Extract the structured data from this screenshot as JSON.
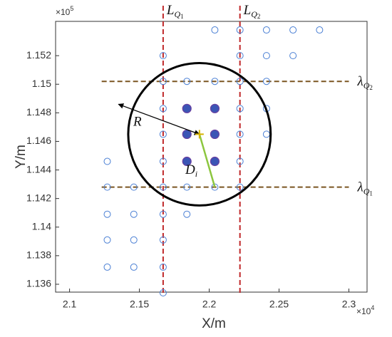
{
  "chart_data": {
    "type": "scatter",
    "xlabel": "X/m",
    "ylabel": "Y/m",
    "x_exponent": {
      "base": "×10",
      "power": "4"
    },
    "y_exponent": {
      "base": "×10",
      "power": "5"
    },
    "xlim": [
      2.09,
      2.313
    ],
    "ylim": [
      1.13545,
      1.1544
    ],
    "xticks": [
      2.1,
      2.15,
      2.2,
      2.25,
      2.3
    ],
    "yticks": [
      1.136,
      1.138,
      1.14,
      1.142,
      1.144,
      1.146,
      1.148,
      1.15,
      1.152
    ],
    "series": [
      {
        "marker": "open",
        "color": "#4a7fd4",
        "x": [
          2.204,
          2.222,
          2.241,
          2.26,
          2.279,
          2.167,
          2.222,
          2.241,
          2.26,
          2.167,
          2.184,
          2.204,
          2.222,
          2.241,
          2.167,
          2.222,
          2.241,
          2.167,
          2.222,
          2.241,
          2.127,
          2.167,
          2.222,
          2.127,
          2.146,
          2.167,
          2.184,
          2.204,
          2.222,
          2.127,
          2.146,
          2.167,
          2.184,
          2.127,
          2.146,
          2.167,
          2.127,
          2.146,
          2.167,
          2.167
        ],
        "y": [
          1.1538,
          1.1538,
          1.1538,
          1.1538,
          1.1538,
          1.152,
          1.152,
          1.152,
          1.152,
          1.1502,
          1.1502,
          1.1502,
          1.1502,
          1.1502,
          1.1483,
          1.1483,
          1.1483,
          1.1465,
          1.1465,
          1.1465,
          1.1446,
          1.1446,
          1.1446,
          1.1428,
          1.1428,
          1.1428,
          1.1428,
          1.1428,
          1.1428,
          1.1409,
          1.1409,
          1.1409,
          1.1409,
          1.1391,
          1.1391,
          1.1391,
          1.1372,
          1.1372,
          1.1372,
          1.1354
        ]
      },
      {
        "marker": "filled",
        "color": "#3b55b5",
        "x": [
          2.184,
          2.204,
          2.184,
          2.204,
          2.184,
          2.204
        ],
        "y": [
          1.1483,
          1.1483,
          1.1465,
          1.1465,
          1.1446,
          1.1446
        ]
      }
    ],
    "vlines": [
      {
        "x": 2.167,
        "color": "#c0282a",
        "label": {
          "main": "L",
          "sub": "Q",
          "subsub": "1"
        }
      },
      {
        "x": 2.222,
        "color": "#c0282a",
        "label": {
          "main": "L",
          "sub": "Q",
          "subsub": "2"
        }
      }
    ],
    "hlines": [
      {
        "y": 1.1502,
        "x_from": 2.123,
        "x_to": 2.3,
        "color": "#7a5520",
        "label": {
          "main": "λ",
          "sub": "Q",
          "subsub": "2"
        }
      },
      {
        "y": 1.1428,
        "x_from": 2.123,
        "x_to": 2.3,
        "color": "#7a5520",
        "label": {
          "main": "λ",
          "sub": "Q",
          "subsub": "1"
        }
      }
    ],
    "circle": {
      "cx": 2.193,
      "cy": 1.1465,
      "r": 0.051,
      "color": "#000000"
    },
    "radius_arrow": {
      "x": 2.135,
      "y": 1.1486,
      "label": "R"
    },
    "distance_line": {
      "x": 2.204,
      "y": 1.1428,
      "color": "#8cc63f",
      "label": {
        "main": "D",
        "sub": "i"
      }
    }
  }
}
